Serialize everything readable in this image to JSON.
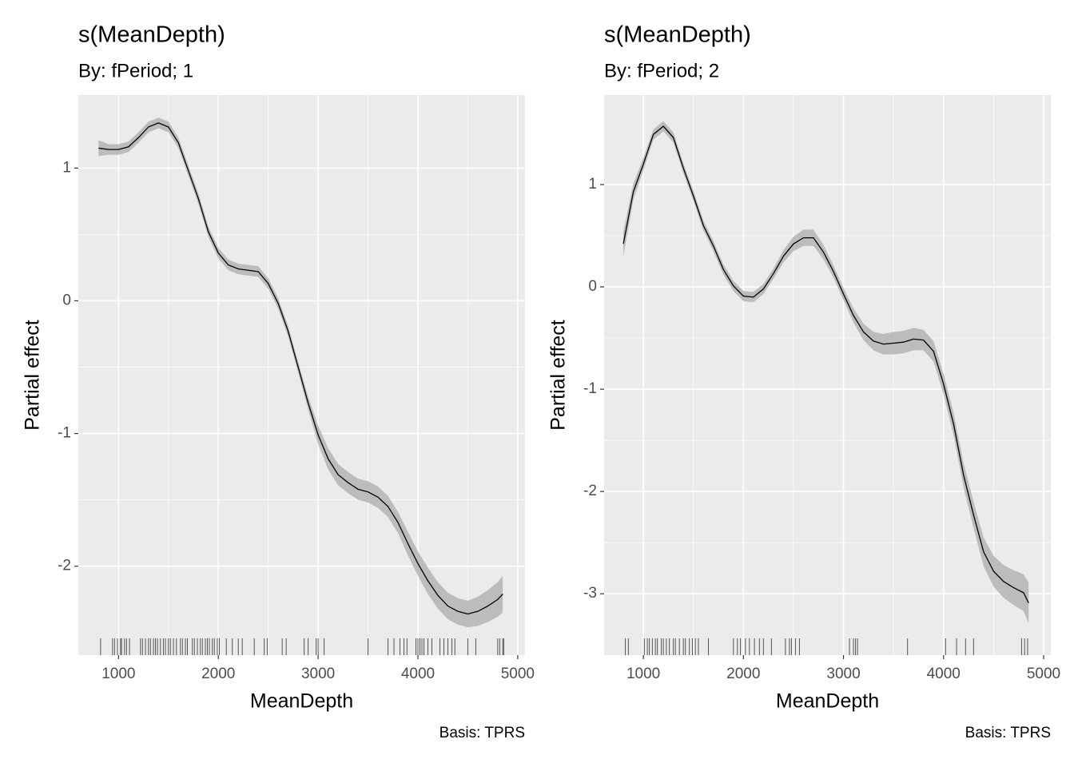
{
  "chart_data": [
    {
      "type": "line",
      "title": "s(MeanDepth)",
      "subtitle": "By: fPeriod; 1",
      "x_label": "MeanDepth",
      "y_label": "Partial effect",
      "caption": "Basis: TPRS",
      "x": [
        800,
        900,
        1000,
        1100,
        1200,
        1300,
        1400,
        1500,
        1600,
        1700,
        1800,
        1900,
        2000,
        2100,
        2200,
        2300,
        2400,
        2500,
        2600,
        2700,
        2800,
        2900,
        3000,
        3100,
        3200,
        3300,
        3400,
        3500,
        3600,
        3700,
        3800,
        3900,
        4000,
        4100,
        4200,
        4300,
        4400,
        4500,
        4600,
        4700,
        4800,
        4850
      ],
      "values": [
        1.15,
        1.14,
        1.14,
        1.16,
        1.23,
        1.31,
        1.34,
        1.31,
        1.19,
        0.98,
        0.77,
        0.52,
        0.36,
        0.27,
        0.24,
        0.23,
        0.22,
        0.13,
        -0.02,
        -0.23,
        -0.5,
        -0.77,
        -1.01,
        -1.19,
        -1.31,
        -1.37,
        -1.42,
        -1.44,
        -1.48,
        -1.55,
        -1.67,
        -1.83,
        -1.98,
        -2.11,
        -2.22,
        -2.3,
        -2.34,
        -2.36,
        -2.34,
        -2.3,
        -2.25,
        -2.21
      ],
      "lower": [
        1.09,
        1.1,
        1.1,
        1.12,
        1.19,
        1.27,
        1.3,
        1.27,
        1.15,
        0.94,
        0.73,
        0.48,
        0.32,
        0.23,
        0.2,
        0.19,
        0.18,
        0.09,
        -0.06,
        -0.27,
        -0.54,
        -0.82,
        -1.08,
        -1.27,
        -1.39,
        -1.45,
        -1.5,
        -1.52,
        -1.56,
        -1.63,
        -1.75,
        -1.92,
        -2.07,
        -2.21,
        -2.32,
        -2.4,
        -2.44,
        -2.46,
        -2.45,
        -2.42,
        -2.38,
        -2.35
      ],
      "upper": [
        1.21,
        1.18,
        1.18,
        1.2,
        1.27,
        1.35,
        1.38,
        1.35,
        1.23,
        1.02,
        0.81,
        0.56,
        0.4,
        0.31,
        0.28,
        0.27,
        0.26,
        0.17,
        0.02,
        -0.19,
        -0.46,
        -0.72,
        -0.94,
        -1.11,
        -1.23,
        -1.29,
        -1.34,
        -1.36,
        -1.4,
        -1.47,
        -1.59,
        -1.74,
        -1.89,
        -2.01,
        -2.12,
        -2.2,
        -2.24,
        -2.26,
        -2.23,
        -2.18,
        -2.12,
        -2.07
      ],
      "rug": [
        820,
        940,
        960,
        990,
        1020,
        1030,
        1060,
        1080,
        1110,
        1220,
        1240,
        1270,
        1300,
        1320,
        1350,
        1370,
        1390,
        1420,
        1450,
        1470,
        1500,
        1520,
        1550,
        1580,
        1620,
        1640,
        1670,
        1690,
        1740,
        1760,
        1790,
        1820,
        1840,
        1870,
        1890,
        1910,
        1940,
        1960,
        1990,
        2010,
        2080,
        2140,
        2200,
        2240,
        2360,
        2460,
        2490,
        2640,
        2680,
        2860,
        2900,
        2980,
        3000,
        3060,
        3500,
        3700,
        3760,
        3820,
        3860,
        3890,
        3980,
        4000,
        4020,
        4040,
        4060,
        4100,
        4140,
        4220,
        4260,
        4300,
        4340,
        4370,
        4500,
        4580,
        4800,
        4820,
        4850,
        4860
      ],
      "xlim": [
        597,
        5073
      ],
      "ylim": [
        -2.67,
        1.55
      ],
      "xticks": [
        1000,
        2000,
        3000,
        4000,
        5000
      ],
      "yticks": [
        -2,
        -1,
        0,
        1
      ],
      "grid": true,
      "line_color": "#000000",
      "band_color": "#bcbcbc",
      "rug_color": "#555555",
      "panel_color": "#ebebeb"
    },
    {
      "type": "line",
      "title": "s(MeanDepth)",
      "subtitle": "By: fPeriod; 2",
      "x_label": "MeanDepth",
      "y_label": "Partial effect",
      "caption": "Basis: TPRS",
      "x": [
        800,
        900,
        1000,
        1100,
        1200,
        1300,
        1400,
        1500,
        1600,
        1700,
        1800,
        1900,
        2000,
        2100,
        2200,
        2300,
        2400,
        2500,
        2600,
        2700,
        2800,
        2900,
        3000,
        3100,
        3200,
        3300,
        3400,
        3500,
        3600,
        3700,
        3800,
        3900,
        4000,
        4100,
        4200,
        4300,
        4400,
        4500,
        4600,
        4700,
        4800,
        4850
      ],
      "values": [
        0.42,
        0.93,
        1.2,
        1.49,
        1.57,
        1.46,
        1.16,
        0.89,
        0.6,
        0.4,
        0.17,
        0.01,
        -0.09,
        -0.1,
        -0.02,
        0.13,
        0.3,
        0.42,
        0.48,
        0.48,
        0.34,
        0.15,
        -0.07,
        -0.28,
        -0.44,
        -0.53,
        -0.56,
        -0.55,
        -0.54,
        -0.51,
        -0.52,
        -0.63,
        -0.95,
        -1.34,
        -1.84,
        -2.23,
        -2.59,
        -2.78,
        -2.88,
        -2.94,
        -2.99,
        -3.09
      ],
      "lower": [
        0.3,
        0.85,
        1.14,
        1.44,
        1.52,
        1.41,
        1.11,
        0.84,
        0.55,
        0.35,
        0.12,
        -0.04,
        -0.14,
        -0.15,
        -0.07,
        0.08,
        0.24,
        0.35,
        0.4,
        0.4,
        0.27,
        0.09,
        -0.13,
        -0.35,
        -0.52,
        -0.62,
        -0.66,
        -0.66,
        -0.65,
        -0.62,
        -0.62,
        -0.73,
        -1.05,
        -1.45,
        -1.96,
        -2.36,
        -2.73,
        -2.93,
        -3.04,
        -3.11,
        -3.17,
        -3.29
      ],
      "upper": [
        0.54,
        1.01,
        1.26,
        1.54,
        1.62,
        1.51,
        1.21,
        0.94,
        0.65,
        0.45,
        0.22,
        0.06,
        -0.04,
        -0.05,
        0.03,
        0.18,
        0.36,
        0.49,
        0.56,
        0.56,
        0.41,
        0.21,
        -0.01,
        -0.21,
        -0.36,
        -0.44,
        -0.46,
        -0.44,
        -0.43,
        -0.4,
        -0.42,
        -0.53,
        -0.85,
        -1.23,
        -1.72,
        -2.1,
        -2.45,
        -2.63,
        -2.72,
        -2.77,
        -2.81,
        -2.89
      ],
      "rug": [
        820,
        850,
        1010,
        1040,
        1060,
        1090,
        1120,
        1140,
        1180,
        1200,
        1230,
        1260,
        1300,
        1320,
        1360,
        1400,
        1420,
        1460,
        1490,
        1520,
        1550,
        1650,
        1900,
        1940,
        1970,
        2020,
        2060,
        2110,
        2160,
        2200,
        2280,
        2420,
        2460,
        2480,
        2520,
        2560,
        3060,
        3100,
        3120,
        3140,
        3640,
        4020,
        4130,
        4220,
        4300,
        4780,
        4810,
        4840
      ],
      "xlim": [
        608,
        5072
      ],
      "ylim": [
        -3.6,
        1.875
      ],
      "xticks": [
        1000,
        2000,
        3000,
        4000,
        5000
      ],
      "yticks": [
        -3,
        -2,
        -1,
        0,
        1
      ],
      "grid": true,
      "line_color": "#000000",
      "band_color": "#bcbcbc",
      "rug_color": "#555555",
      "panel_color": "#ebebeb"
    }
  ]
}
